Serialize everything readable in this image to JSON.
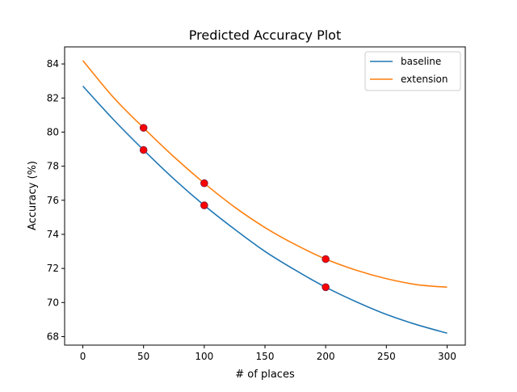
{
  "chart_data": {
    "type": "line",
    "title": "Predicted Accuracy Plot",
    "xlabel": "# of places",
    "ylabel": "Accuracy (%)",
    "xlim": [
      -15,
      315
    ],
    "ylim": [
      67.5,
      85.0
    ],
    "xticks": [
      0,
      50,
      100,
      150,
      200,
      250,
      300
    ],
    "yticks": [
      68,
      70,
      72,
      74,
      76,
      78,
      80,
      82,
      84
    ],
    "grid": false,
    "legend_position": "top-right",
    "series": [
      {
        "name": "baseline",
        "color": "#1f77b4",
        "x": [
          0,
          25,
          50,
          75,
          100,
          125,
          150,
          175,
          200,
          225,
          250,
          275,
          300
        ],
        "y": [
          82.7,
          80.75,
          78.95,
          77.25,
          75.7,
          74.3,
          73.0,
          71.9,
          70.9,
          70.05,
          69.3,
          68.7,
          68.2
        ]
      },
      {
        "name": "extension",
        "color": "#ff7f0e",
        "x": [
          0,
          25,
          50,
          75,
          100,
          125,
          150,
          175,
          200,
          225,
          250,
          275,
          300
        ],
        "y": [
          84.2,
          82.05,
          80.25,
          78.55,
          77.0,
          75.6,
          74.4,
          73.4,
          72.55,
          71.9,
          71.4,
          71.05,
          70.9
        ]
      }
    ],
    "points": {
      "color": "#ff0000",
      "edge_color": "#8b1a3a",
      "x": [
        50,
        100,
        200,
        50,
        100,
        200
      ],
      "y": [
        78.95,
        75.7,
        70.9,
        80.25,
        77.0,
        72.55
      ]
    }
  }
}
